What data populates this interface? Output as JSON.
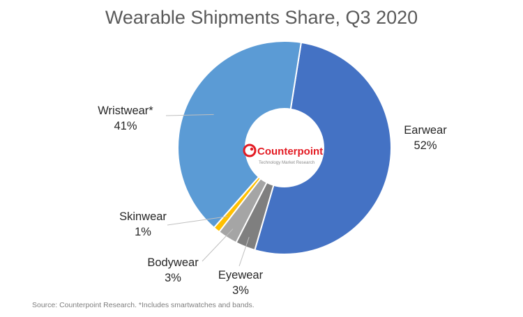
{
  "chart_data": {
    "type": "pie",
    "title": "Wearable Shipments Share, Q3 2020",
    "slices": [
      {
        "label": "Earwear",
        "value": 52,
        "display": "52%",
        "color": "#4472C4"
      },
      {
        "label": "Eyewear",
        "value": 3,
        "display": "3%",
        "color": "#7F7F7F"
      },
      {
        "label": "Bodywear",
        "value": 3,
        "display": "3%",
        "color": "#A5A5A5"
      },
      {
        "label": "Skinwear",
        "value": 1,
        "display": "1%",
        "color": "#FFC000"
      },
      {
        "label": "Wristwear*",
        "value": 41,
        "display": "41%",
        "color": "#5B9BD5"
      }
    ],
    "start_angle_deg": 9,
    "donut_center_logo": {
      "name": "counterpoint-logo",
      "text": "Counterpoint",
      "subtext": "Technology Market Research"
    }
  },
  "footer": {
    "source": "Source: Counterpoint Research. *Includes smartwatches and bands."
  }
}
